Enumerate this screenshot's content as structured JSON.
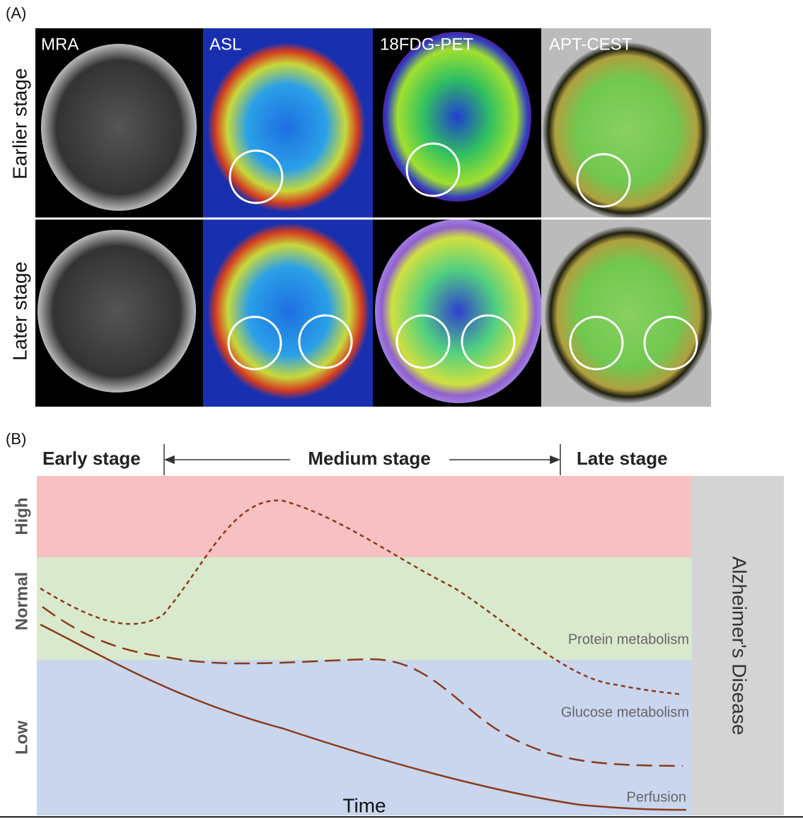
{
  "panel_a": {
    "label": "(A)",
    "columns": [
      "MRA",
      "ASL",
      "18FDG-PET",
      "APT-CEST"
    ],
    "rows": [
      "Earlier stage",
      "Later stage"
    ]
  },
  "panel_b": {
    "label": "(B)",
    "stages": [
      "Early stage",
      "Medium stage",
      "Late stage"
    ],
    "levels": [
      "High",
      "Normal",
      "Low"
    ],
    "curves": [
      "Protein metabolism",
      "Glucose metabolism",
      "Perfusion"
    ],
    "x_label": "Time",
    "outcome": "Alzheimer's Disease"
  }
}
